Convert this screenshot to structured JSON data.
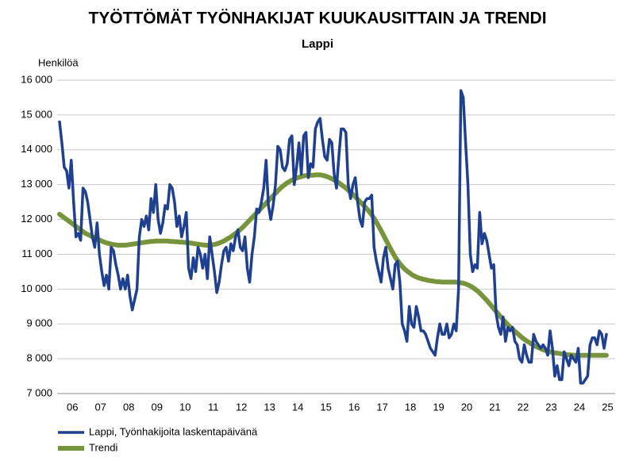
{
  "chart_data": {
    "type": "line",
    "title": "TYÖTTÖMÄT TYÖNHAKIJAT KUUKAUSITTAIN JA TRENDI",
    "subtitle": "Lappi",
    "y_label": "Henkilöä",
    "categories": [
      null,
      null,
      null,
      null,
      null,
      "06",
      null,
      null,
      null,
      null,
      null,
      null,
      null,
      null,
      null,
      null,
      null,
      "07",
      null,
      null,
      null,
      null,
      null,
      null,
      null,
      null,
      null,
      null,
      null,
      "08",
      null,
      null,
      null,
      null,
      null,
      null,
      null,
      null,
      null,
      null,
      null,
      "09",
      null,
      null,
      null,
      null,
      null,
      null,
      null,
      null,
      null,
      null,
      null,
      "10",
      null,
      null,
      null,
      null,
      null,
      null,
      null,
      null,
      null,
      null,
      null,
      "11",
      null,
      null,
      null,
      null,
      null,
      null,
      null,
      null,
      null,
      null,
      null,
      "12",
      null,
      null,
      null,
      null,
      null,
      null,
      null,
      null,
      null,
      null,
      null,
      "13",
      null,
      null,
      null,
      null,
      null,
      null,
      null,
      null,
      null,
      null,
      null,
      "14",
      null,
      null,
      null,
      null,
      null,
      null,
      null,
      null,
      null,
      null,
      null,
      "15",
      null,
      null,
      null,
      null,
      null,
      null,
      null,
      null,
      null,
      null,
      null,
      "16",
      null,
      null,
      null,
      null,
      null,
      null,
      null,
      null,
      null,
      null,
      null,
      "17",
      null,
      null,
      null,
      null,
      null,
      null,
      null,
      null,
      null,
      null,
      null,
      "18",
      null,
      null,
      null,
      null,
      null,
      null,
      null,
      null,
      null,
      null,
      null,
      "19",
      null,
      null,
      null,
      null,
      null,
      null,
      null,
      null,
      null,
      null,
      null,
      "20",
      null,
      null,
      null,
      null,
      null,
      null,
      null,
      null,
      null,
      null,
      null,
      "21",
      null,
      null,
      null,
      null,
      null,
      null,
      null,
      null,
      null,
      null,
      null,
      "22",
      null,
      null,
      null,
      null,
      null,
      null,
      null,
      null,
      null,
      null,
      null,
      "23",
      null,
      null,
      null,
      null,
      null,
      null,
      null,
      null,
      null,
      null,
      null,
      "24",
      null,
      null,
      null,
      null,
      null,
      null,
      null,
      null,
      null,
      null,
      null,
      "25"
    ],
    "series": [
      {
        "name": "Lappi, Työnhakijoita laskentapäivänä",
        "color": "#1f3f8f",
        "values": [
          14800,
          14200,
          13500,
          13400,
          12900,
          13700,
          12500,
          11500,
          11600,
          11400,
          12900,
          12800,
          12500,
          12000,
          11500,
          11200,
          11900,
          11000,
          10500,
          10100,
          10400,
          10000,
          11200,
          11100,
          10700,
          10400,
          10000,
          10300,
          10000,
          10400,
          9800,
          9400,
          9700,
          10000,
          11500,
          12000,
          11800,
          12100,
          11700,
          12600,
          12200,
          13000,
          12000,
          11600,
          11900,
          12400,
          12300,
          13000,
          12900,
          12500,
          11800,
          12100,
          11500,
          11800,
          12200,
          10600,
          10300,
          10900,
          10500,
          11200,
          11000,
          10600,
          11000,
          10300,
          11500,
          11000,
          10500,
          9900,
          10200,
          10700,
          11100,
          11200,
          10800,
          11300,
          11100,
          11500,
          11700,
          11200,
          11100,
          11500,
          10600,
          10200,
          11000,
          11500,
          12300,
          12200,
          12500,
          12900,
          13700,
          12400,
          12000,
          12400,
          13000,
          14100,
          14000,
          13500,
          13400,
          13600,
          14300,
          14400,
          13000,
          13500,
          14200,
          13300,
          14400,
          14500,
          13200,
          13600,
          13500,
          14600,
          14800,
          14900,
          14300,
          13800,
          13700,
          14300,
          14200,
          13300,
          12900,
          13800,
          14600,
          14600,
          14500,
          13000,
          12600,
          13000,
          13200,
          12500,
          12000,
          11800,
          12500,
          12600,
          12600,
          12700,
          11200,
          10800,
          10500,
          10200,
          10900,
          11200,
          10600,
          10300,
          10000,
          10700,
          10800,
          10200,
          9000,
          8800,
          8500,
          9500,
          9000,
          8900,
          9500,
          9200,
          8800,
          8800,
          8700,
          8500,
          8300,
          8200,
          8100,
          8600,
          9000,
          8700,
          8700,
          9000,
          8600,
          8700,
          9000,
          8800,
          10000,
          15700,
          15500,
          14200,
          13000,
          11000,
          10500,
          10700,
          10600,
          12200,
          11300,
          11600,
          11400,
          11000,
          10600,
          10700,
          9300,
          8900,
          8700,
          9200,
          8500,
          8900,
          8800,
          8900,
          8500,
          8400,
          8000,
          7900,
          8400,
          8100,
          7900,
          7900,
          8700,
          8500,
          8400,
          8300,
          8400,
          8300,
          8100,
          8800,
          8300,
          7500,
          7800,
          7400,
          7400,
          8200,
          8000,
          7800,
          8100,
          8000,
          7900,
          8300,
          7300,
          7300,
          7400,
          7500,
          8400,
          8600,
          8600,
          8400,
          8800,
          8700,
          8300,
          8700
        ]
      },
      {
        "name": "Trendi",
        "color": "#77933c",
        "values": [
          12150,
          12100,
          12050,
          12000,
          11950,
          11900,
          11850,
          11800,
          11750,
          11700,
          11650,
          11600,
          11570,
          11540,
          11500,
          11470,
          11440,
          11410,
          11380,
          11350,
          11330,
          11310,
          11290,
          11280,
          11270,
          11260,
          11260,
          11260,
          11260,
          11270,
          11280,
          11290,
          11300,
          11310,
          11320,
          11330,
          11340,
          11350,
          11360,
          11370,
          11370,
          11380,
          11380,
          11380,
          11380,
          11380,
          11380,
          11370,
          11370,
          11360,
          11360,
          11350,
          11350,
          11340,
          11340,
          11330,
          11320,
          11310,
          11300,
          11290,
          11280,
          11270,
          11260,
          11260,
          11260,
          11270,
          11280,
          11300,
          11320,
          11350,
          11380,
          11420,
          11460,
          11500,
          11550,
          11600,
          11650,
          11710,
          11770,
          11840,
          11910,
          11980,
          12050,
          12120,
          12190,
          12260,
          12330,
          12400,
          12470,
          12540,
          12610,
          12680,
          12750,
          12820,
          12890,
          12950,
          13000,
          13050,
          13090,
          13130,
          13160,
          13190,
          13210,
          13230,
          13250,
          13260,
          13270,
          13270,
          13270,
          13280,
          13280,
          13280,
          13270,
          13250,
          13230,
          13200,
          13170,
          13130,
          13090,
          13050,
          13000,
          12950,
          12900,
          12840,
          12780,
          12720,
          12650,
          12580,
          12510,
          12440,
          12370,
          12300,
          12220,
          12130,
          12030,
          11920,
          11800,
          11680,
          11550,
          11420,
          11290,
          11160,
          11040,
          10920,
          10820,
          10730,
          10650,
          10580,
          10520,
          10470,
          10420,
          10380,
          10350,
          10320,
          10300,
          10280,
          10270,
          10250,
          10240,
          10230,
          10220,
          10210,
          10210,
          10200,
          10200,
          10200,
          10200,
          10200,
          10200,
          10200,
          10190,
          10180,
          10170,
          10150,
          10120,
          10090,
          10050,
          10000,
          9950,
          9890,
          9820,
          9750,
          9680,
          9600,
          9520,
          9440,
          9360,
          9280,
          9200,
          9120,
          9050,
          8980,
          8910,
          8850,
          8790,
          8730,
          8670,
          8610,
          8560,
          8510,
          8470,
          8430,
          8390,
          8350,
          8320,
          8290,
          8260,
          8240,
          8220,
          8200,
          8180,
          8170,
          8160,
          8150,
          8140,
          8130,
          8120,
          8110,
          8110,
          8100,
          8100,
          8100,
          8100,
          8100,
          8100,
          8100,
          8100,
          8100,
          8100,
          8100,
          8100,
          8100,
          8100,
          8100
        ]
      }
    ],
    "ylim": [
      7000,
      16000
    ],
    "yticks": [
      {
        "value": 7000,
        "label": "7 000"
      },
      {
        "value": 8000,
        "label": "8 000"
      },
      {
        "value": 9000,
        "label": "9 000"
      },
      {
        "value": 10000,
        "label": "10 000"
      },
      {
        "value": 11000,
        "label": "11 000"
      },
      {
        "value": 12000,
        "label": "12 000"
      },
      {
        "value": 13000,
        "label": "13 000"
      },
      {
        "value": 14000,
        "label": "14 000"
      },
      {
        "value": 15000,
        "label": "15 000"
      },
      {
        "value": 16000,
        "label": "16 000"
      }
    ],
    "grid": true
  }
}
